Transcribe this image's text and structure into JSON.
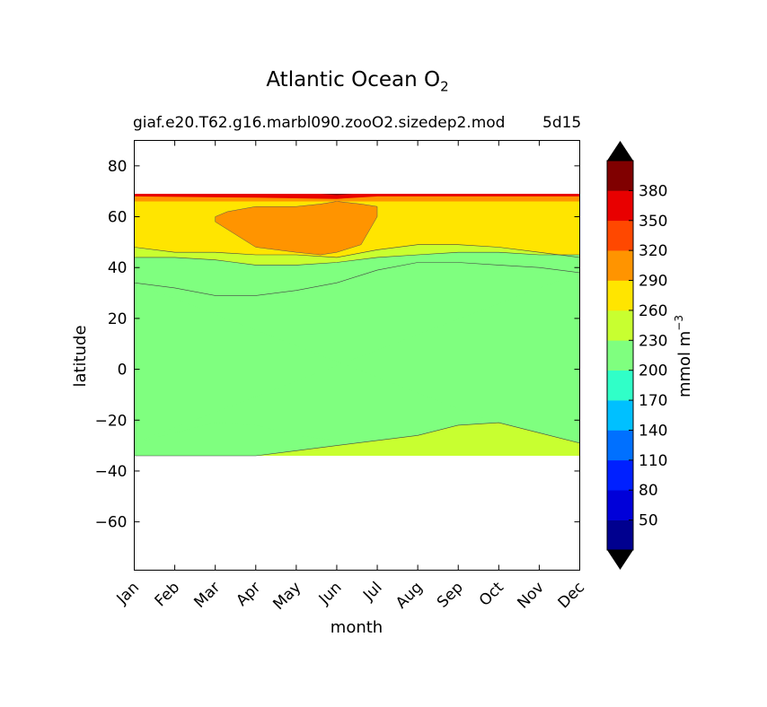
{
  "chart_data": {
    "type": "contour",
    "title": "Atlantic Ocean O",
    "title_subscript": "2",
    "run_name": "giaf.e20.T62.g16.marbl090.zooO2.sizedep2.mod",
    "run_tag": "5d15",
    "xlabel": "month",
    "ylabel": "latitude",
    "x_ticks": [
      "Jan",
      "Feb",
      "Mar",
      "Apr",
      "May",
      "Jun",
      "Jul",
      "Aug",
      "Sep",
      "Oct",
      "Nov",
      "Dec"
    ],
    "y_ticks": [
      80,
      60,
      40,
      20,
      0,
      -20,
      -40,
      -60
    ],
    "y_tick_labels": [
      "80",
      "60",
      "40",
      "20",
      "0",
      "−20",
      "−40",
      "−60"
    ],
    "ylim": [
      -79,
      90
    ],
    "data_lat_range": [
      -34,
      69
    ],
    "colorbar": {
      "label": "mmol m",
      "label_superscript": "−3",
      "extend": "both",
      "levels": [
        20,
        50,
        80,
        110,
        140,
        170,
        200,
        230,
        260,
        290,
        320,
        350,
        380,
        410
      ],
      "tick_labels": [
        "50",
        "80",
        "110",
        "140",
        "170",
        "200",
        "230",
        "260",
        "290",
        "320",
        "350",
        "380"
      ],
      "colors": [
        "#00008f",
        "#0000d9",
        "#0020ff",
        "#0070ff",
        "#00c0ff",
        "#30ffc8",
        "#7fff7f",
        "#c8ff30",
        "#ffe500",
        "#ff9400",
        "#ff4800",
        "#e80000",
        "#800000"
      ],
      "under_color": "#000000",
      "over_color": "#000000"
    },
    "contours": [
      {
        "level": 230,
        "lat": [
          34,
          32,
          29,
          29,
          31,
          34,
          39,
          42,
          42,
          41,
          40,
          38
        ]
      },
      {
        "level": 260,
        "lat": [
          44,
          44,
          43,
          41,
          41,
          42,
          44,
          45,
          46,
          46,
          45,
          45
        ]
      },
      {
        "level": 290,
        "lat": [
          48,
          46,
          46,
          45,
          45,
          44,
          47,
          49,
          49,
          48,
          46,
          44
        ]
      },
      {
        "level": 200,
        "lat": [
          -34,
          -34,
          -34,
          -34,
          -32,
          -30,
          -28,
          -26,
          -22,
          -21,
          -25,
          -29
        ]
      }
    ],
    "regions": [
      {
        "name": "south-green",
        "value_range": [
          230,
          260
        ],
        "lat_bottom": -34,
        "top_level": 200
      },
      {
        "name": "north-orange-tongue",
        "value_range": [
          290,
          320
        ],
        "months": [
          "Mar",
          "Jul"
        ],
        "lat_range": [
          45,
          66
        ]
      },
      {
        "name": "north-red-band",
        "value_range": [
          350,
          380
        ],
        "lat_range": [
          66,
          69
        ]
      }
    ]
  }
}
